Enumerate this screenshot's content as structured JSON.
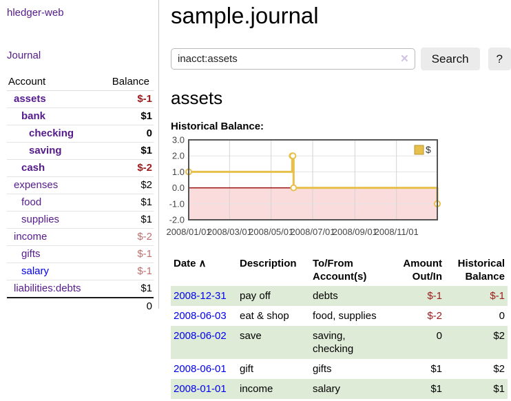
{
  "app": {
    "title": "hledger-web",
    "nav_journal": "Journal"
  },
  "sidebar": {
    "header": {
      "account": "Account",
      "balance": "Balance"
    },
    "accounts": [
      {
        "name": "assets",
        "balance": "$-1"
      },
      {
        "name": "bank",
        "balance": "$1"
      },
      {
        "name": "checking",
        "balance": "0"
      },
      {
        "name": "saving",
        "balance": "$1"
      },
      {
        "name": "cash",
        "balance": "$-2"
      },
      {
        "name": "expenses",
        "balance": "$2"
      },
      {
        "name": "food",
        "balance": "$1"
      },
      {
        "name": "supplies",
        "balance": "$1"
      },
      {
        "name": "income",
        "balance": "$-2"
      },
      {
        "name": "gifts",
        "balance": "$-1"
      },
      {
        "name": "salary",
        "balance": "$-1"
      },
      {
        "name": "liabilities:debts",
        "balance": "$1"
      }
    ],
    "total": "0"
  },
  "main": {
    "title": "sample.journal",
    "search": {
      "value": "inacct:assets",
      "clear_icon": "✕",
      "button": "Search",
      "help_button": "?"
    },
    "account_heading": "assets",
    "chart_heading": "Historical Balance:"
  },
  "chart_data": {
    "type": "line",
    "step": true,
    "title": "Historical Balance",
    "series": [
      {
        "name": "$",
        "color": "#e7c04b",
        "points": [
          [
            "2008/01/01",
            1
          ],
          [
            "2008/06/01",
            2
          ],
          [
            "2008/06/02",
            2
          ],
          [
            "2008/06/03",
            0
          ],
          [
            "2008/12/31",
            -1
          ]
        ]
      }
    ],
    "x_range": [
      "2008/01/01",
      "2008/12/31"
    ],
    "x_ticks": [
      "2008/01/01",
      "2008/03/01",
      "2008/05/01",
      "2008/07/01",
      "2008/09/01",
      "2008/11/01"
    ],
    "y_ticks": [
      3,
      2,
      1,
      0,
      -1,
      -2
    ],
    "ylim": [
      -2,
      3
    ],
    "grid": true,
    "legend_position": "top-right",
    "negative_region_color": "#fbdcdc",
    "zero_line_color": "#9c0f0f",
    "border_color": "#545454"
  },
  "register": {
    "headers": {
      "date": "Date",
      "sort_icon": "∧",
      "description": "Description",
      "account_line1": "To/From",
      "account_line2": "Account(s)",
      "amount_line1": "Amount",
      "amount_line2": "Out/In",
      "balance_line1": "Historical",
      "balance_line2": "Balance"
    },
    "rows": [
      {
        "date": "2008-12-31",
        "description": "pay off",
        "accounts": "debts",
        "amount": "$-1",
        "balance": "$-1"
      },
      {
        "date": "2008-06-03",
        "description": "eat & shop",
        "accounts": "food, supplies",
        "amount": "$-2",
        "balance": "0"
      },
      {
        "date": "2008-06-02",
        "description": "save",
        "accounts": "saving, checking",
        "amount": "0",
        "balance": "$2"
      },
      {
        "date": "2008-06-01",
        "description": "gift",
        "accounts": "gifts",
        "amount": "$1",
        "balance": "$2"
      },
      {
        "date": "2008-01-01",
        "description": "income",
        "accounts": "salary",
        "amount": "$1",
        "balance": "$1"
      }
    ]
  },
  "colors": {
    "link_visited": "#551a8b",
    "link_unvisited": "#0000ee",
    "negative_strong": "#9c1a1a",
    "negative_muted": "#c17070",
    "row_highlight": "#deebd6",
    "series_gold": "#e7c04b",
    "negative_region": "#fbdcdc",
    "zero_line": "#9c0f0f",
    "chart_border": "#545454"
  }
}
